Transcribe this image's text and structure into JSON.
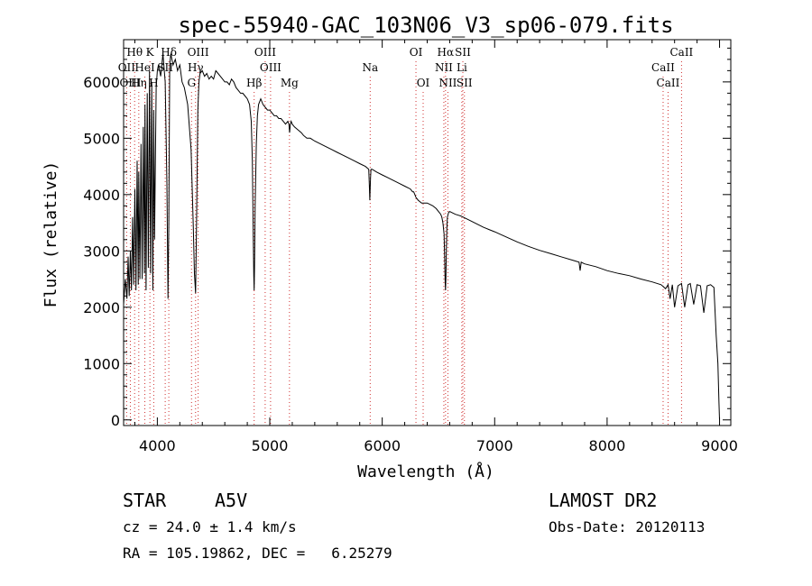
{
  "chart_data": {
    "type": "line",
    "title": "spec-55940-GAC_103N06_V3_sp06-079.fits",
    "xlabel": "Wavelength (Å)",
    "ylabel": "Flux (relative)",
    "xlim": [
      3700,
      9100
    ],
    "ylim": [
      -100,
      6750
    ],
    "xticks": [
      4000,
      5000,
      6000,
      7000,
      8000,
      9000
    ],
    "yticks": [
      0,
      1000,
      2000,
      3000,
      4000,
      5000,
      6000
    ],
    "grid": false,
    "series": [
      {
        "name": "spectrum",
        "x": [
          3700,
          3715,
          3730,
          3740,
          3750,
          3760,
          3770,
          3780,
          3790,
          3800,
          3810,
          3820,
          3830,
          3835,
          3845,
          3855,
          3865,
          3875,
          3885,
          3890,
          3900,
          3910,
          3920,
          3930,
          3940,
          3950,
          3960,
          3968,
          3975,
          3990,
          4000,
          4010,
          4030,
          4050,
          4070,
          4085,
          4095,
          4102,
          4110,
          4120,
          4140,
          4160,
          4180,
          4200,
          4220,
          4240,
          4270,
          4300,
          4320,
          4330,
          4340,
          4350,
          4360,
          4370,
          4380,
          4400,
          4420,
          4440,
          4460,
          4480,
          4500,
          4520,
          4540,
          4560,
          4580,
          4600,
          4620,
          4640,
          4660,
          4680,
          4700,
          4720,
          4740,
          4760,
          4780,
          4800,
          4820,
          4835,
          4845,
          4852,
          4858,
          4861,
          4864,
          4870,
          4880,
          4890,
          4900,
          4920,
          4940,
          4960,
          4980,
          5000,
          5020,
          5040,
          5060,
          5080,
          5100,
          5120,
          5140,
          5160,
          5170,
          5176,
          5183,
          5190,
          5200,
          5220,
          5250,
          5280,
          5300,
          5330,
          5360,
          5400,
          5450,
          5500,
          5550,
          5600,
          5650,
          5700,
          5750,
          5800,
          5850,
          5880,
          5885,
          5890,
          5893,
          5896,
          5900,
          5910,
          5950,
          6000,
          6050,
          6100,
          6150,
          6200,
          6250,
          6270,
          6280,
          6290,
          6300,
          6320,
          6350,
          6400,
          6450,
          6480,
          6500,
          6520,
          6530,
          6540,
          6550,
          6555,
          6560,
          6563,
          6566,
          6570,
          6575,
          6580,
          6590,
          6600,
          6620,
          6650,
          6700,
          6750,
          6800,
          6850,
          6900,
          6950,
          7000,
          7100,
          7200,
          7300,
          7400,
          7500,
          7600,
          7700,
          7750,
          7760,
          7770,
          7780,
          7790,
          7800,
          7900,
          8000,
          8100,
          8200,
          8300,
          8400,
          8480,
          8498,
          8520,
          8542,
          8560,
          8580,
          8600,
          8630,
          8662,
          8690,
          8720,
          8740,
          8770,
          8800,
          8830,
          8860,
          8890,
          8920,
          8950,
          8970,
          8985,
          8995,
          9000
        ],
        "values": [
          2050,
          2500,
          2150,
          2900,
          2200,
          3000,
          2300,
          3600,
          2400,
          4100,
          2300,
          4600,
          2400,
          4400,
          2500,
          4900,
          2500,
          5200,
          2600,
          5600,
          2300,
          5800,
          2700,
          6200,
          2600,
          6000,
          2300,
          5500,
          3200,
          5900,
          6200,
          6300,
          6100,
          6500,
          6000,
          4200,
          2150,
          3500,
          6300,
          6500,
          6300,
          6400,
          6200,
          6300,
          6000,
          5900,
          5600,
          4800,
          3400,
          2600,
          2250,
          3700,
          5500,
          6000,
          6150,
          6200,
          6100,
          6150,
          6050,
          6100,
          6050,
          6200,
          6150,
          6100,
          6050,
          6000,
          6000,
          5950,
          6050,
          6000,
          5900,
          5850,
          5800,
          5800,
          5750,
          5700,
          5600,
          5300,
          4600,
          3400,
          2550,
          2300,
          2700,
          3800,
          4900,
          5400,
          5600,
          5700,
          5600,
          5550,
          5500,
          5500,
          5450,
          5400,
          5400,
          5350,
          5350,
          5300,
          5250,
          5300,
          5250,
          5100,
          5250,
          5300,
          5250,
          5200,
          5150,
          5100,
          5050,
          5000,
          5000,
          4950,
          4900,
          4850,
          4800,
          4750,
          4700,
          4650,
          4600,
          4550,
          4500,
          4450,
          4200,
          3900,
          4100,
          4300,
          4450,
          4450,
          4400,
          4350,
          4300,
          4250,
          4200,
          4150,
          4100,
          4050,
          4050,
          4000,
          3950,
          3900,
          3850,
          3850,
          3800,
          3750,
          3700,
          3650,
          3600,
          3500,
          3300,
          2900,
          2450,
          2300,
          2500,
          3000,
          3400,
          3600,
          3680,
          3700,
          3680,
          3650,
          3620,
          3570,
          3520,
          3470,
          3420,
          3380,
          3340,
          3250,
          3160,
          3080,
          3010,
          2950,
          2890,
          2830,
          2800,
          2650,
          2800,
          2790,
          2780,
          2770,
          2720,
          2650,
          2600,
          2560,
          2500,
          2450,
          2400,
          2370,
          2330,
          2400,
          2150,
          2400,
          2000,
          2380,
          2420,
          2000,
          2400,
          2420,
          2050,
          2400,
          2380,
          1900,
          2380,
          2400,
          2350,
          1500,
          1000,
          300,
          0
        ]
      }
    ],
    "line_markers": [
      {
        "label": "Hθ",
        "wavelength": 3798,
        "row": 1
      },
      {
        "label": "OII",
        "wavelength": 3727,
        "row": 2
      },
      {
        "label": "OIII",
        "wavelength": 3760,
        "row": 3
      },
      {
        "label": "Hη",
        "wavelength": 3835,
        "row": 3
      },
      {
        "label": "K",
        "wavelength": 3934,
        "row": 1
      },
      {
        "label": "HeI",
        "wavelength": 3889,
        "row": 2
      },
      {
        "label": "SII",
        "wavelength": 4070,
        "row": 2
      },
      {
        "label": "H",
        "wavelength": 3968,
        "row": 3
      },
      {
        "label": "Hδ",
        "wavelength": 4102,
        "row": 1
      },
      {
        "label": "OIII",
        "wavelength": 4363,
        "row": 1
      },
      {
        "label": "Hγ",
        "wavelength": 4340,
        "row": 2
      },
      {
        "label": "G",
        "wavelength": 4304,
        "row": 3
      },
      {
        "label": "OIII",
        "wavelength": 4959,
        "row": 1
      },
      {
        "label": "OIII",
        "wavelength": 5007,
        "row": 2
      },
      {
        "label": "Hβ",
        "wavelength": 4861,
        "row": 3
      },
      {
        "label": "Mg",
        "wavelength": 5175,
        "row": 3
      },
      {
        "label": "Na",
        "wavelength": 5893,
        "row": 2
      },
      {
        "label": "OI",
        "wavelength": 6300,
        "row": 1
      },
      {
        "label": "OI",
        "wavelength": 6364,
        "row": 3
      },
      {
        "label": "Hα",
        "wavelength": 6563,
        "row": 1
      },
      {
        "label": "SII",
        "wavelength": 6717,
        "row": 1
      },
      {
        "label": "NII",
        "wavelength": 6548,
        "row": 2
      },
      {
        "label": "Li",
        "wavelength": 6708,
        "row": 2
      },
      {
        "label": "NII",
        "wavelength": 6584,
        "row": 3
      },
      {
        "label": "SII",
        "wavelength": 6731,
        "row": 3
      },
      {
        "label": "CaII",
        "wavelength": 8662,
        "row": 1
      },
      {
        "label": "CaII",
        "wavelength": 8498,
        "row": 2
      },
      {
        "label": "CaII",
        "wavelength": 8542,
        "row": 3
      }
    ]
  },
  "info": {
    "object_type": "STAR",
    "subclass": "A5V",
    "survey": "LAMOST DR2",
    "redshift": "cz = 24.0 ± 1.4 km/s",
    "obs_date": "Obs-Date: 20120113",
    "coords": "RA = 105.19862, DEC =   6.25279"
  }
}
